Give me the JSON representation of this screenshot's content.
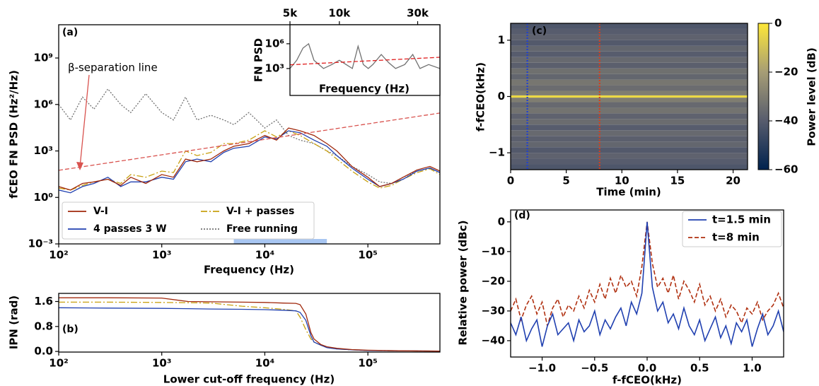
{
  "chart_data": [
    {
      "type": "line",
      "panel_label": "(a)",
      "xlabel": "Frequency (Hz)",
      "ylabel": "fCEO FN PSD (Hz²/Hz)",
      "xscale": "log",
      "yscale": "log",
      "xlim": [
        100,
        500000
      ],
      "ylim": [
        0.001,
        140000000000
      ],
      "xticks": [
        {
          "value": 100,
          "label": "10²"
        },
        {
          "value": 1000,
          "label": "10³"
        },
        {
          "value": 10000,
          "label": "10⁴"
        },
        {
          "value": 100000,
          "label": "10⁵"
        }
      ],
      "yticks": [
        {
          "value": 0.001,
          "label": "10⁻³"
        },
        {
          "value": 1,
          "label": "10⁰"
        },
        {
          "value": 1000,
          "label": "10³"
        },
        {
          "value": 1000000,
          "label": "10⁶"
        },
        {
          "value": 1000000000,
          "label": "10⁹"
        }
      ],
      "legend": "lower left",
      "series": [
        {
          "name": "V-I",
          "color": "#a0280c",
          "dash": "solid",
          "x": [
            100,
            130,
            170,
            220,
            300,
            400,
            500,
            700,
            1000,
            1300,
            1700,
            2200,
            3000,
            4000,
            5000,
            7000,
            10000,
            13000,
            17000,
            22000,
            30000,
            40000,
            50000,
            70000,
            100000,
            130000,
            170000,
            220000,
            300000,
            400000,
            500000
          ],
          "values": [
            5,
            3,
            8,
            10,
            15,
            6,
            20,
            8,
            30,
            20,
            300,
            200,
            300,
            1000,
            2000,
            3000,
            10000,
            5000,
            30000,
            20000,
            10000,
            3000,
            1000,
            100,
            20,
            5,
            8,
            20,
            60,
            100,
            50
          ]
        },
        {
          "name": "4 passes 3 W",
          "color": "#2040b0",
          "dash": "solid",
          "x": [
            100,
            130,
            170,
            220,
            300,
            400,
            500,
            700,
            1000,
            1300,
            1700,
            2200,
            3000,
            4000,
            5000,
            7000,
            10000,
            13000,
            17000,
            22000,
            30000,
            40000,
            50000,
            70000,
            100000,
            130000,
            170000,
            220000,
            300000,
            400000,
            500000
          ],
          "values": [
            3,
            2,
            5,
            8,
            20,
            5,
            10,
            10,
            20,
            15,
            200,
            300,
            200,
            800,
            1500,
            2000,
            8000,
            6000,
            20000,
            15000,
            5000,
            2000,
            500,
            80,
            15,
            5,
            8,
            15,
            50,
            80,
            40
          ]
        },
        {
          "name": "V-I + passes",
          "color": "#c8a010",
          "dash": "dashdot",
          "x": [
            100,
            130,
            170,
            220,
            300,
            400,
            500,
            700,
            1000,
            1300,
            1700,
            2200,
            3000,
            4000,
            5000,
            7000,
            10000,
            13000,
            17000,
            22000,
            30000,
            40000,
            50000,
            70000,
            100000,
            130000,
            170000,
            220000,
            300000,
            400000,
            500000
          ],
          "values": [
            4,
            3,
            6,
            10,
            15,
            8,
            30,
            20,
            50,
            40,
            1000,
            500,
            800,
            3000,
            3000,
            5000,
            20000,
            8000,
            20000,
            10000,
            3000,
            1000,
            300,
            50,
            10,
            4,
            6,
            15,
            40,
            70,
            30
          ]
        },
        {
          "name": "Free running",
          "color": "#707070",
          "dash": "dotted",
          "x": [
            100,
            130,
            170,
            220,
            300,
            400,
            500,
            700,
            1000,
            1300,
            1700,
            2200,
            3000,
            4000,
            5000,
            7000,
            10000,
            13000,
            17000,
            22000,
            30000,
            40000,
            50000,
            70000,
            100000,
            130000,
            170000,
            220000,
            300000,
            400000,
            500000
          ],
          "values": [
            1000000,
            100000,
            3000000,
            500000,
            10000000,
            1000000,
            300000,
            5000000,
            300000,
            100000,
            3000000,
            100000,
            200000,
            100000,
            50000,
            300000,
            30000,
            100000,
            10000,
            5000,
            3000,
            1000,
            500,
            100,
            30,
            10,
            8,
            20,
            50,
            80,
            40
          ]
        }
      ],
      "reference_line": {
        "x": [
          100,
          500000
        ],
        "values": [
          56,
          280000
        ],
        "color": "#d9534f"
      },
      "annotation": "β-separation line",
      "highlight_span": [
        5000,
        40000
      ],
      "highlight_color": "#a8c6f2"
    },
    {
      "type": "line",
      "xlabel": "Frequency (Hz)",
      "ylabel": "FN PSD",
      "xaxis_position": "top",
      "xscale": "log",
      "yscale": "log",
      "xlim": [
        5000,
        41000
      ],
      "ylim": [
        0.55,
        200000000
      ],
      "xticks": [
        {
          "value": 5000,
          "label": "5k"
        },
        {
          "value": 10000,
          "label": "10k"
        },
        {
          "value": 30000,
          "label": "30k"
        }
      ],
      "yticks": [
        {
          "value": 1000,
          "label": "10³"
        },
        {
          "value": 1000000,
          "label": "10⁶"
        }
      ],
      "series": [
        {
          "color": "#707070",
          "dash": "solid",
          "x": [
            5000,
            5500,
            6000,
            6500,
            7000,
            7500,
            8000,
            9000,
            10000,
            11000,
            12000,
            13000,
            14000,
            15000,
            16000,
            18000,
            20000,
            22000,
            25000,
            28000,
            31000,
            35000,
            41000
          ],
          "values": [
            1000,
            10000,
            300000,
            1000000,
            10000,
            3000,
            1000,
            3000,
            10000,
            3000,
            1000,
            500000,
            3000,
            1000,
            3000,
            50000,
            5000,
            1000,
            3000,
            50000,
            1000,
            3000,
            1000
          ]
        }
      ],
      "reference_line": {
        "x": [
          5000,
          41000
        ],
        "values": [
          2800,
          23000
        ],
        "color": "#e02020"
      }
    },
    {
      "type": "line",
      "panel_label": "(b)",
      "xlabel": "Lower cut-off frequency (Hz)",
      "ylabel": "IPN (rad)",
      "xscale": "log",
      "xlim": [
        100,
        500000
      ],
      "ylim": [
        -0.02,
        1.86
      ],
      "xticks": [
        {
          "value": 100,
          "label": "10²"
        },
        {
          "value": 1000,
          "label": "10³"
        },
        {
          "value": 10000,
          "label": "10⁴"
        },
        {
          "value": 100000,
          "label": "10⁵"
        }
      ],
      "yticks": [
        {
          "value": 0,
          "label": "0.0"
        },
        {
          "value": 0.8,
          "label": "0.8"
        },
        {
          "value": 1.6,
          "label": "1.6"
        }
      ],
      "series": [
        {
          "color": "#a0280c",
          "dash": "solid",
          "x": [
            100,
            300,
            1000,
            1800,
            3000,
            6000,
            10000,
            15000,
            20000,
            22000,
            25000,
            28000,
            30000,
            35000,
            40000,
            50000,
            70000,
            100000,
            200000,
            500000
          ],
          "values": [
            1.72,
            1.72,
            1.71,
            1.6,
            1.59,
            1.58,
            1.57,
            1.55,
            1.54,
            1.5,
            1.2,
            0.6,
            0.4,
            0.22,
            0.15,
            0.1,
            0.06,
            0.04,
            0.02,
            0.01
          ]
        },
        {
          "color": "#2040b0",
          "dash": "solid",
          "x": [
            100,
            300,
            1000,
            1800,
            3000,
            6000,
            10000,
            15000,
            20000,
            22000,
            25000,
            28000,
            30000,
            35000,
            40000,
            50000,
            70000,
            100000,
            200000,
            500000
          ],
          "values": [
            1.4,
            1.39,
            1.38,
            1.37,
            1.36,
            1.35,
            1.34,
            1.32,
            1.3,
            1.25,
            1.0,
            0.5,
            0.3,
            0.2,
            0.12,
            0.08,
            0.05,
            0.03,
            0.02,
            0.01
          ]
        },
        {
          "color": "#c8a010",
          "dash": "dashdot",
          "x": [
            100,
            300,
            1000,
            1800,
            3000,
            6000,
            10000,
            15000,
            20000,
            22000,
            25000,
            28000,
            30000,
            35000,
            40000,
            50000,
            70000,
            100000,
            200000,
            500000
          ],
          "values": [
            1.58,
            1.58,
            1.57,
            1.56,
            1.55,
            1.45,
            1.4,
            1.35,
            1.3,
            1.1,
            0.7,
            0.4,
            0.3,
            0.2,
            0.13,
            0.08,
            0.05,
            0.03,
            0.02,
            0.01
          ]
        }
      ]
    },
    {
      "type": "heatmap",
      "panel_label": "(c)",
      "xlabel": "Time (min)",
      "ylabel": "f-fCEO(kHz)",
      "xlim": [
        0,
        21.3
      ],
      "ylim": [
        -1.3,
        1.3
      ],
      "xticks": [
        0,
        5,
        10,
        15,
        20
      ],
      "yticks": [
        {
          "value": -1,
          "label": "−1"
        },
        0,
        1
      ],
      "y_bins": [
        -1.3,
        -1.2,
        -1.1,
        -1.0,
        -0.9,
        -0.8,
        -0.7,
        -0.6,
        -0.5,
        -0.4,
        -0.3,
        -0.2,
        -0.1,
        -0.02,
        0.02,
        0.1,
        0.2,
        0.3,
        0.4,
        0.5,
        0.6,
        0.7,
        0.8,
        0.9,
        1.0,
        1.1,
        1.2,
        1.3
      ],
      "values": [
        -42,
        -40,
        -38,
        -41,
        -37,
        -39,
        -36,
        -40,
        -35,
        -38,
        -33,
        -36,
        -30,
        -4,
        -30,
        -35,
        -32,
        -37,
        -34,
        -39,
        -36,
        -40,
        -37,
        -41,
        -38,
        -40,
        -42
      ],
      "clim": [
        -60,
        0
      ],
      "colormap": [
        "#00224e",
        "#575c6d",
        "#a69d75",
        "#fee838"
      ],
      "colorbar_label": "Power level (dB)",
      "colorbar_ticks": [
        0,
        {
          "value": -20,
          "label": "−20"
        },
        {
          "value": -40,
          "label": "−40"
        },
        {
          "value": -60,
          "label": "−60"
        }
      ],
      "markers": [
        {
          "x": 1.5,
          "color": "#2040d0"
        },
        {
          "x": 8,
          "color": "#d04020"
        }
      ]
    },
    {
      "type": "line",
      "panel_label": "(d)",
      "xlabel": "f-fCEO(kHz)",
      "ylabel": "Relative power (dBc)",
      "xlim": [
        -1.3,
        1.3
      ],
      "ylim": [
        -45.5,
        4
      ],
      "xticks": [
        {
          "value": -1,
          "label": "−1.0"
        },
        {
          "value": -0.5,
          "label": "−0.5"
        },
        {
          "value": 0,
          "label": "0.0"
        },
        {
          "value": 0.5,
          "label": "0.5"
        },
        {
          "value": 1,
          "label": "1.0"
        }
      ],
      "yticks": [
        {
          "value": -40,
          "label": "−40"
        },
        {
          "value": -30,
          "label": "−30"
        },
        {
          "value": -20,
          "label": "−20"
        },
        {
          "value": -10,
          "label": "−10"
        },
        0
      ],
      "legend": "upper right",
      "series": [
        {
          "name": "t=1.5 min",
          "color": "#2040b0",
          "dash": "solid",
          "x": [
            -1.3,
            -1.25,
            -1.2,
            -1.15,
            -1.1,
            -1.05,
            -1.0,
            -0.95,
            -0.9,
            -0.85,
            -0.8,
            -0.75,
            -0.7,
            -0.65,
            -0.6,
            -0.55,
            -0.5,
            -0.45,
            -0.4,
            -0.35,
            -0.3,
            -0.25,
            -0.2,
            -0.15,
            -0.1,
            -0.05,
            0,
            0.05,
            0.1,
            0.15,
            0.2,
            0.25,
            0.3,
            0.35,
            0.4,
            0.45,
            0.5,
            0.55,
            0.6,
            0.65,
            0.7,
            0.75,
            0.8,
            0.85,
            0.9,
            0.95,
            1.0,
            1.05,
            1.1,
            1.15,
            1.2,
            1.25,
            1.3
          ],
          "values": [
            -34,
            -38,
            -32,
            -40,
            -36,
            -33,
            -42,
            -35,
            -31,
            -38,
            -36,
            -34,
            -40,
            -33,
            -37,
            -35,
            -30,
            -38,
            -33,
            -36,
            -32,
            -29,
            -35,
            -27,
            -31,
            -24,
            0,
            -22,
            -30,
            -27,
            -34,
            -31,
            -36,
            -29,
            -35,
            -38,
            -33,
            -40,
            -36,
            -32,
            -39,
            -35,
            -41,
            -34,
            -37,
            -33,
            -42,
            -36,
            -31,
            -38,
            -35,
            -30,
            -37
          ]
        },
        {
          "name": "t=8 min",
          "color": "#b03010",
          "dash": "dashed",
          "x": [
            -1.3,
            -1.25,
            -1.2,
            -1.15,
            -1.1,
            -1.05,
            -1.0,
            -0.95,
            -0.9,
            -0.85,
            -0.8,
            -0.75,
            -0.7,
            -0.65,
            -0.6,
            -0.55,
            -0.5,
            -0.45,
            -0.4,
            -0.35,
            -0.3,
            -0.25,
            -0.2,
            -0.15,
            -0.1,
            -0.05,
            0,
            0.05,
            0.1,
            0.15,
            0.2,
            0.25,
            0.3,
            0.35,
            0.4,
            0.45,
            0.5,
            0.55,
            0.6,
            0.65,
            0.7,
            0.75,
            0.8,
            0.85,
            0.9,
            0.95,
            1.0,
            1.05,
            1.1,
            1.15,
            1.2,
            1.25,
            1.3
          ],
          "values": [
            -30,
            -26,
            -33,
            -28,
            -25,
            -31,
            -27,
            -35,
            -29,
            -26,
            -32,
            -28,
            -30,
            -25,
            -29,
            -23,
            -27,
            -21,
            -26,
            -19,
            -24,
            -18,
            -22,
            -20,
            -25,
            -15,
            0,
            -14,
            -22,
            -19,
            -24,
            -18,
            -26,
            -20,
            -23,
            -27,
            -21,
            -28,
            -25,
            -30,
            -26,
            -32,
            -28,
            -30,
            -34,
            -29,
            -31,
            -27,
            -33,
            -30,
            -28,
            -24,
            -29
          ]
        }
      ]
    }
  ]
}
